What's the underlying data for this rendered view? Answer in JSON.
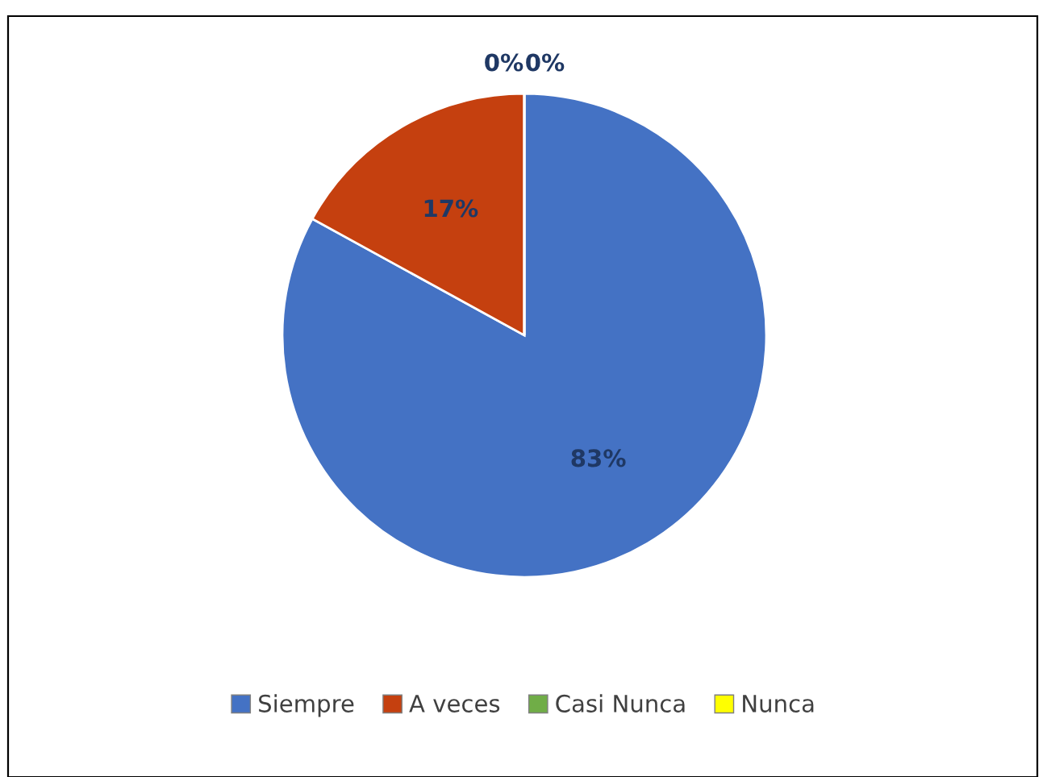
{
  "chart_data": {
    "type": "pie",
    "categories": [
      "Siempre",
      "A veces",
      "Casi Nunca",
      "Nunca"
    ],
    "values": [
      83,
      17,
      0,
      0
    ],
    "colors": [
      "#4472c4",
      "#c5400f",
      "#70ad47",
      "#ffff00"
    ],
    "value_labels": [
      "83%",
      "17%",
      "0%",
      "0%"
    ],
    "legend": "bottom"
  }
}
